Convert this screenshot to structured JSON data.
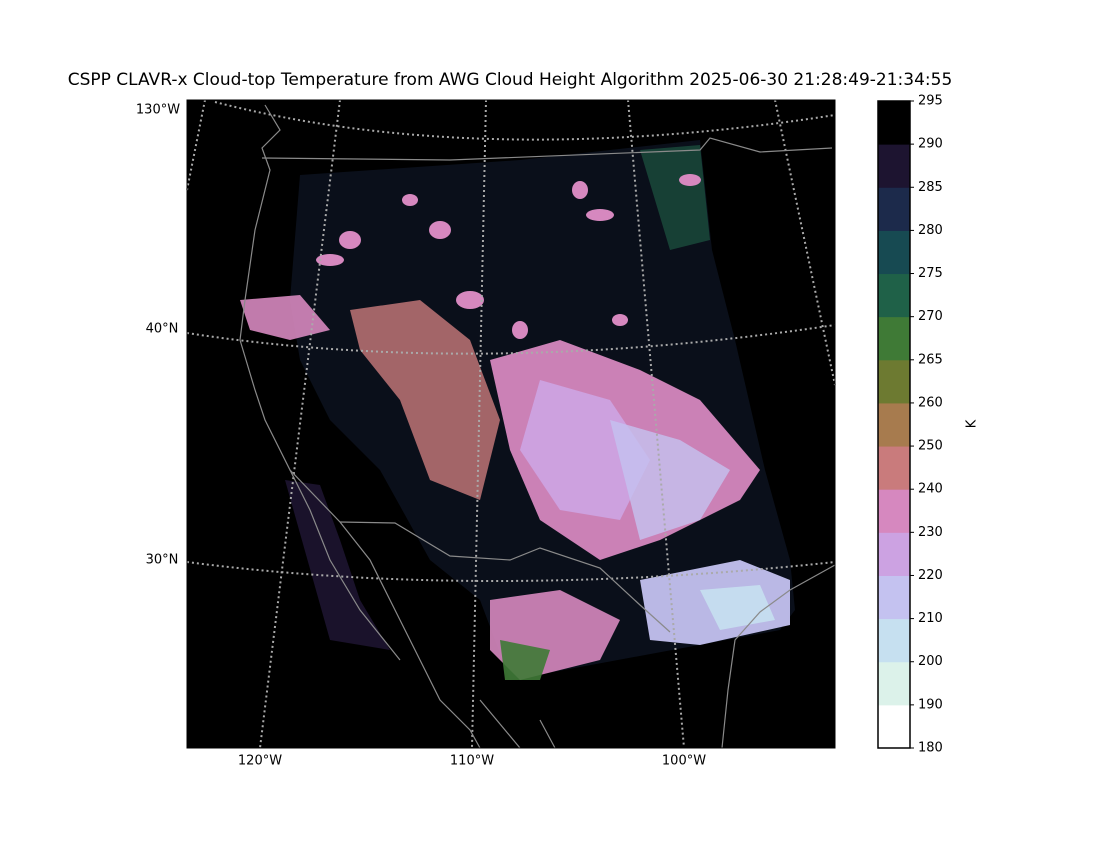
{
  "title": "CSPP CLAVR-x Cloud-top Temperature from AWG Cloud Height Algorithm 2025-06-30 21:28:49-21:34:55",
  "map": {
    "lat_labels": [
      "130°W",
      "40°N",
      "30°N"
    ],
    "lon_labels": [
      "120°W",
      "110°W",
      "100°W"
    ]
  },
  "colorbar": {
    "label": "K",
    "ticks": [
      180,
      190,
      200,
      210,
      220,
      230,
      240,
      250,
      260,
      265,
      270,
      275,
      280,
      285,
      290,
      295
    ],
    "colors": [
      "#ffffff",
      "#dcf2ea",
      "#c6e0f0",
      "#c4c2f0",
      "#cca2e2",
      "#d688bf",
      "#c97b7c",
      "#a77b4e",
      "#6d7a31",
      "#3f7a36",
      "#1f6148",
      "#174a52",
      "#1c2a4b",
      "#1d1430",
      "#000000"
    ]
  }
}
